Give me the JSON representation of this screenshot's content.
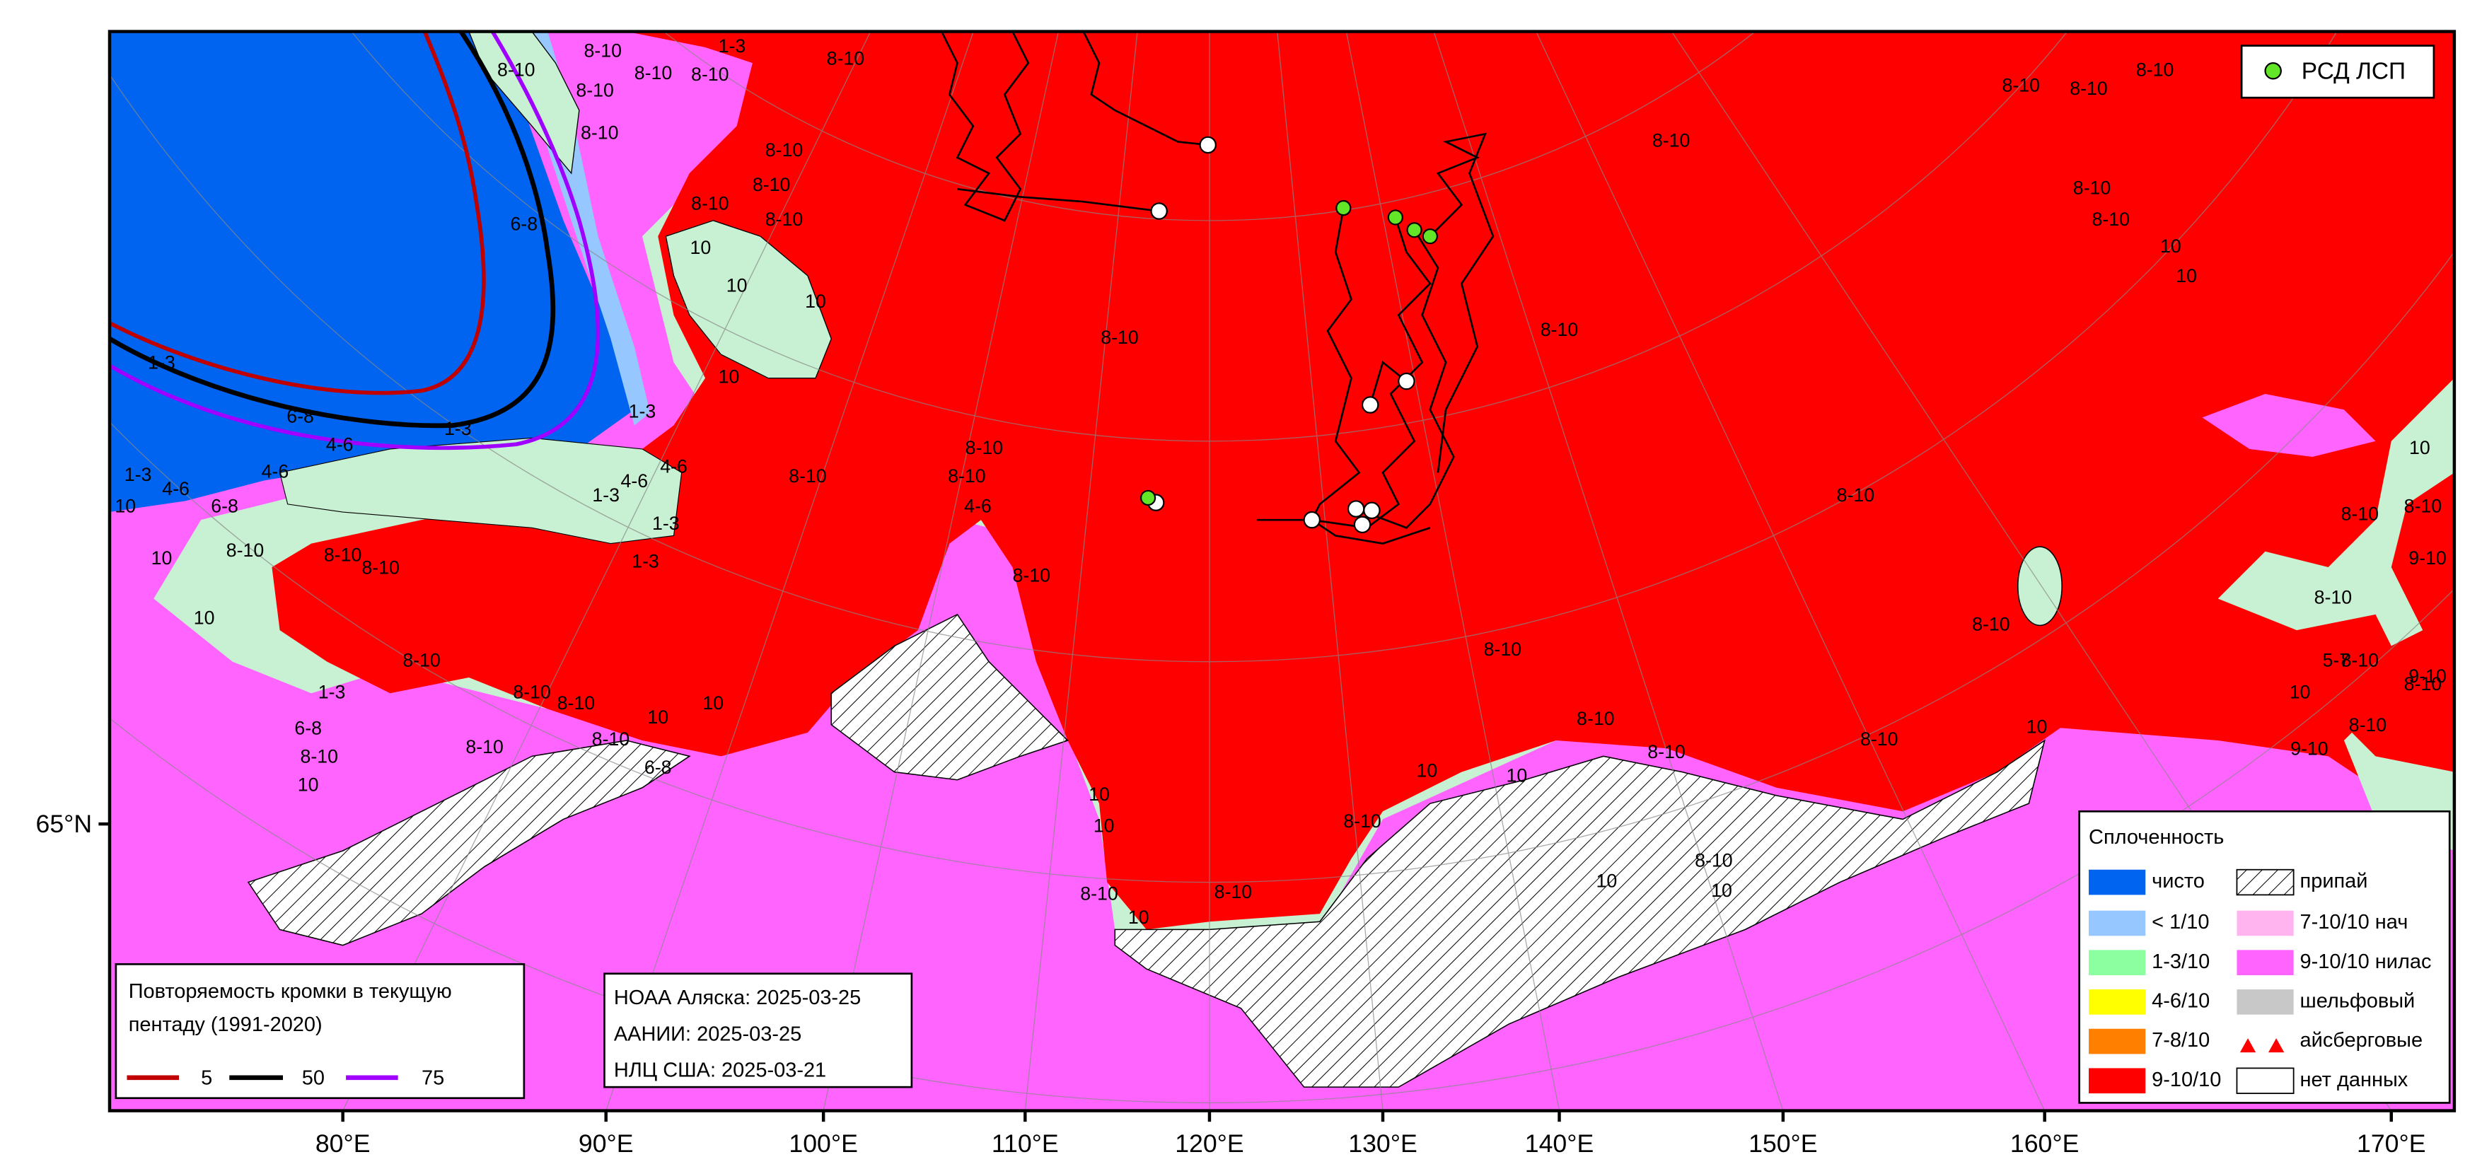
{
  "legend_concentration": {
    "title": "Сплоченность",
    "items_left": [
      "чисто",
      "< 1/10",
      "1-3/10",
      "4-6/10",
      "7-8/10",
      "9-10/10"
    ],
    "items_right": [
      "припай",
      "7-10/10 нач",
      "9-10/10 нилас",
      "шельфовый",
      "айсберговые",
      "нет данных"
    ]
  },
  "legend_stations": "РСД ЛСП",
  "legend_edge": {
    "title_lines": [
      "Повторяемость кромки в текущую",
      "пентаду (1991-2020)"
    ],
    "items": [
      "5",
      "50",
      "75"
    ]
  },
  "sources": [
    "НОАА Аляска: 2025-03-25",
    "ААНИИ: 2025-03-25",
    "НЛЦ США: 2025-03-21"
  ],
  "axis": {
    "x_labels": [
      "80°E",
      "90°E",
      "100°E",
      "110°E",
      "120°E",
      "130°E",
      "140°E",
      "150°E",
      "160°E",
      "170°E"
    ],
    "y_labels": [
      "65°N"
    ]
  },
  "map_labels": [
    "8-10",
    "8-10",
    "8-10",
    "8-10",
    "8-10",
    "8-10",
    "8-10",
    "8-10",
    "8-10",
    "8-10",
    "8-10",
    "8-10",
    "8-10",
    "8-10",
    "8-10",
    "8-10",
    "8-10",
    "8-10",
    "8-10",
    "8-10",
    "8-10",
    "8-10",
    "8-10",
    "8-10",
    "8-10",
    "8-10",
    "8-10",
    "8-10",
    "8-10",
    "8-10",
    "8-10",
    "8-10",
    "8-10",
    "8-10",
    "8-10",
    "8-10",
    "8-10",
    "8-10",
    "8-10",
    "8-10",
    "8-10",
    "8-10",
    "8-10",
    "8-10",
    "8-10",
    "8-10",
    "8-10",
    "8-10",
    "10",
    "10",
    "10",
    "10",
    "10",
    "10",
    "10",
    "10",
    "10",
    "10",
    "10",
    "10",
    "10",
    "10",
    "10",
    "10",
    "10",
    "10",
    "10",
    "10",
    "10",
    "10",
    "10",
    "4-6",
    "4-6",
    "4-6",
    "4-6",
    "4-6",
    "4-6",
    "1-3",
    "1-3",
    "1-3",
    "1-3",
    "1-3",
    "1-3",
    "1-3",
    "1-3",
    "1-3",
    "6-8",
    "6-8",
    "6-8",
    "6-8",
    "6-8",
    "5-7",
    "9-10",
    "9-10",
    "9-10"
  ]
}
